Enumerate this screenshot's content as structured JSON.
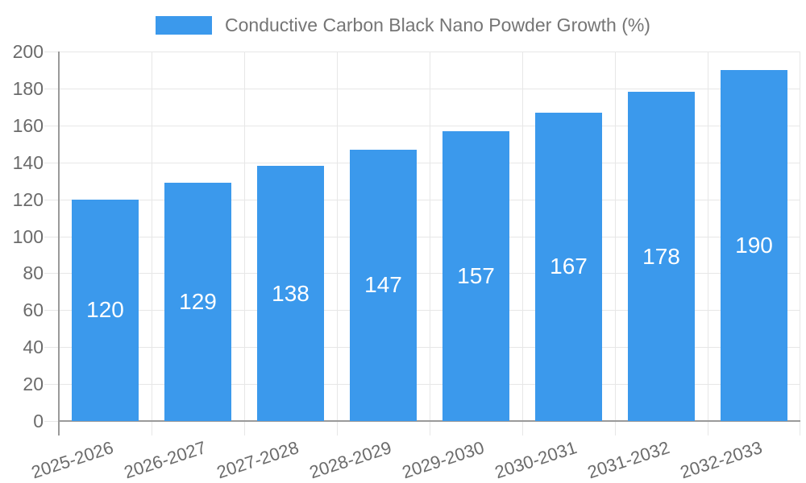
{
  "chart_data": {
    "type": "bar",
    "title": "Conductive Carbon Black Nano Powder Growth (%)",
    "categories": [
      "2025-2026",
      "2026-2027",
      "2027-2028",
      "2028-2029",
      "2029-2030",
      "2030-2031",
      "2031-2032",
      "2032-2033"
    ],
    "values": [
      120,
      129,
      138,
      147,
      157,
      167,
      178,
      190
    ],
    "xlabel": "",
    "ylabel": "",
    "ylim": [
      0,
      200
    ],
    "yticks": [
      0,
      20,
      40,
      60,
      80,
      100,
      120,
      140,
      160,
      180,
      200
    ],
    "grid": true,
    "legend_position": "top",
    "value_label_position": "inside-center"
  },
  "legend": {
    "label": "Conductive Carbon Black Nano Powder Growth (%)"
  },
  "colors": {
    "bar": "#3B99EC",
    "grid": "#E7E7E7",
    "axis": "#9A9A9A",
    "text": "#6B6B6B",
    "legend_text": "#757575",
    "value_label": "#FFFFFF",
    "background": "#FFFFFF"
  }
}
